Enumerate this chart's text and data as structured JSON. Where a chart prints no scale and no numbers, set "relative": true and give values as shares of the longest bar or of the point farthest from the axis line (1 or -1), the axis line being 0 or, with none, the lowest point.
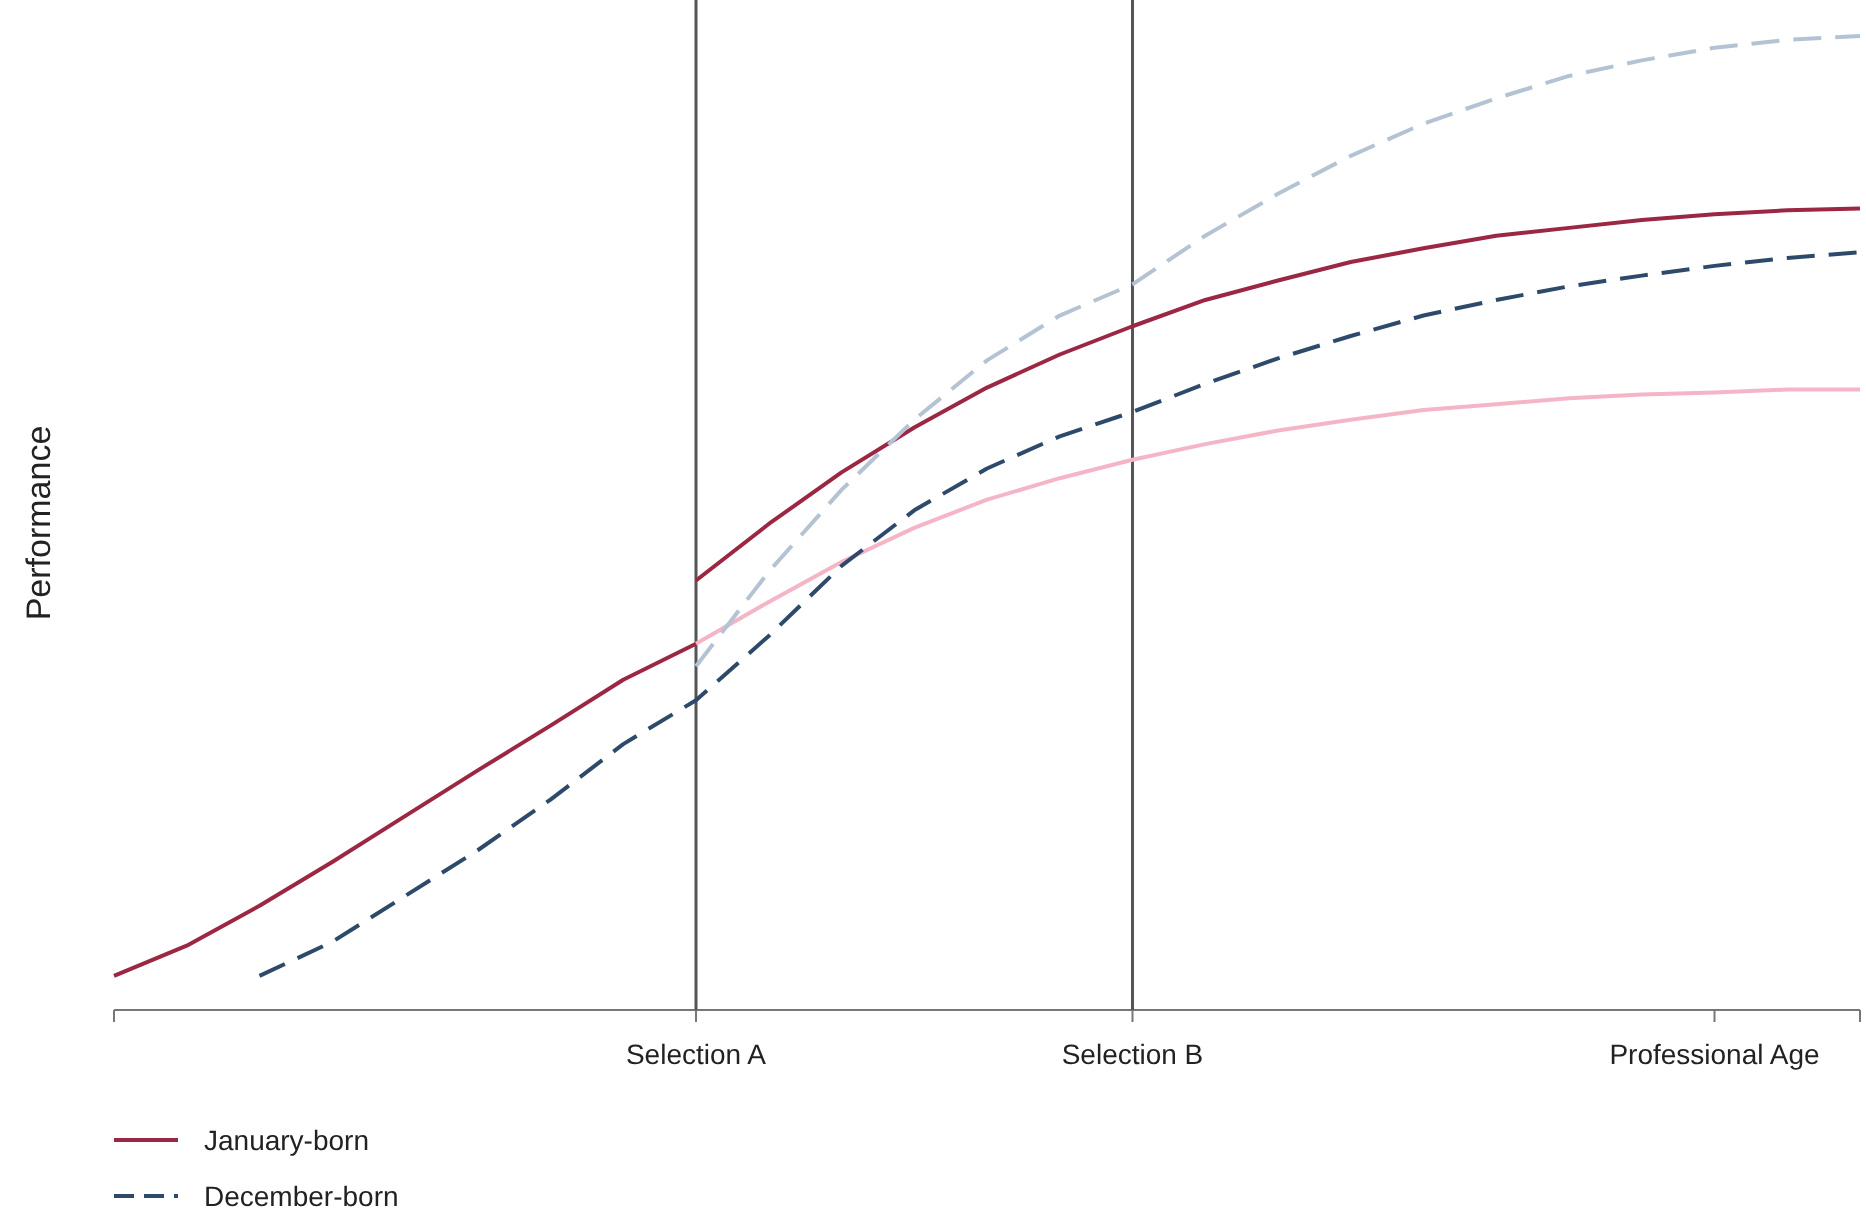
{
  "chart_data": {
    "type": "line",
    "ylabel": "Performance",
    "relative": true,
    "categories": [
      null,
      null,
      null,
      null,
      null,
      null,
      null,
      null,
      "Selection A",
      null,
      null,
      null,
      null,
      null,
      "Selection B",
      null,
      null,
      null,
      null,
      null,
      null,
      null,
      "Professional Age",
      null,
      null
    ],
    "ref_lines": [
      {
        "axis": "x",
        "value": "Selection A",
        "color": "#555555"
      },
      {
        "axis": "x",
        "value": "Selection B",
        "color": "#555555"
      }
    ],
    "legend": "bottom left",
    "grid": false,
    "marker": "none",
    "series": [
      {
        "name": "January-born",
        "color": "#9b2743",
        "line_style": "solid",
        "values": [
          0.035,
          0.066,
          0.107,
          0.152,
          0.199,
          0.246,
          0.292,
          0.339,
          0.376,
          null,
          null,
          null,
          null,
          null,
          null,
          null,
          null,
          null,
          null,
          null,
          null,
          null,
          null,
          null,
          null
        ]
      },
      {
        "color": "#9b2743",
        "line_style": "solid",
        "values": [
          null,
          null,
          null,
          null,
          null,
          null,
          null,
          null,
          0.441,
          0.499,
          0.552,
          0.598,
          0.639,
          0.673,
          0.702,
          0.729,
          0.749,
          0.768,
          0.782,
          0.795,
          0.803,
          0.811,
          0.817,
          0.821,
          0.823
        ]
      },
      {
        "color": "#f4b6c6",
        "line_style": "solid",
        "values": [
          null,
          null,
          null,
          null,
          null,
          null,
          null,
          null,
          0.376,
          0.419,
          0.46,
          0.495,
          0.524,
          0.546,
          0.565,
          0.581,
          0.595,
          0.606,
          0.616,
          0.622,
          0.628,
          0.632,
          0.634,
          0.637,
          0.637
        ]
      },
      {
        "name": "December-born",
        "color": "#2e4a6b",
        "line_style": "dashed",
        "values": [
          null,
          null,
          0.035,
          0.07,
          0.117,
          0.164,
          0.216,
          0.273,
          0.318,
          0.384,
          0.456,
          0.513,
          0.556,
          0.589,
          0.614,
          0.643,
          0.669,
          0.692,
          0.713,
          0.729,
          0.743,
          0.754,
          0.764,
          0.772,
          0.778
        ]
      },
      {
        "color": "#b4c3d3",
        "line_style": "dashed",
        "values": [
          null,
          null,
          null,
          null,
          null,
          null,
          null,
          null,
          0.353,
          0.45,
          0.534,
          0.606,
          0.667,
          0.713,
          0.745,
          0.795,
          0.838,
          0.877,
          0.91,
          0.936,
          0.959,
          0.975,
          0.988,
          0.996,
          1
        ]
      }
    ]
  }
}
